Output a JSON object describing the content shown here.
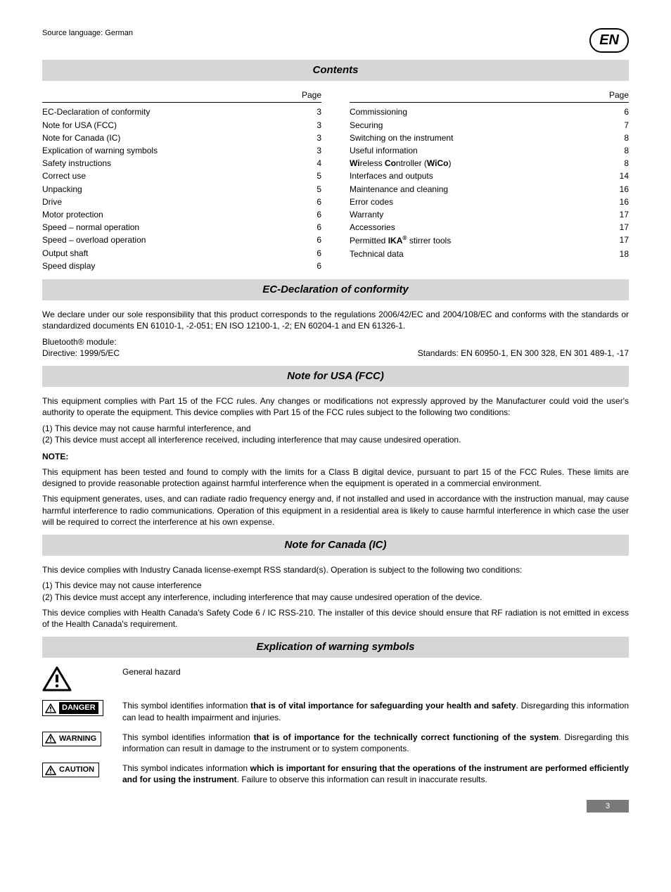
{
  "header": {
    "source_lang": "Source language: German",
    "lang_badge": "EN"
  },
  "contents": {
    "title": "Contents",
    "page_label": "Page",
    "left": [
      {
        "label": "EC-Declaration of conformity",
        "page": "3"
      },
      {
        "label": "Note for USA (FCC)",
        "page": "3"
      },
      {
        "label": "Note for Canada (IC)",
        "page": "3"
      },
      {
        "label": "Explication of warning symbols",
        "page": "3"
      },
      {
        "label": "Safety instructions",
        "page": "4"
      },
      {
        "label": "Correct use",
        "page": "5"
      },
      {
        "label": "Unpacking",
        "page": "5"
      },
      {
        "label": "Drive",
        "page": "6"
      },
      {
        "label": "Motor protection",
        "page": "6"
      },
      {
        "label": "Speed – normal operation",
        "page": "6"
      },
      {
        "label": "Speed – overload operation",
        "page": "6"
      },
      {
        "label": "Output shaft",
        "page": "6"
      },
      {
        "label": "Speed display",
        "page": "6"
      }
    ],
    "right": [
      {
        "label": "Commissioning",
        "page": "6"
      },
      {
        "label": "Securing",
        "page": "7"
      },
      {
        "label": "Switching on the instrument",
        "page": "8"
      },
      {
        "label": "Useful information",
        "page": "8"
      },
      {
        "label_html": "<b>Wi</b>reless <b>Co</b>ntroller (<b>WiCo</b>)",
        "page": "8"
      },
      {
        "label": "Interfaces and outputs",
        "page": "14"
      },
      {
        "label": "Maintenance and cleaning",
        "page": "16"
      },
      {
        "label": "Error codes",
        "page": "16"
      },
      {
        "label": "Warranty",
        "page": "17"
      },
      {
        "label": "Accessories",
        "page": "17"
      },
      {
        "label_html": "Permitted <b>IKA<sup>®</sup></b> stirrer tools",
        "page": "17"
      },
      {
        "label": "Technical data",
        "page": "18"
      }
    ]
  },
  "ec": {
    "title": "EC-Declaration of conformity",
    "p1": "We declare under our sole responsibility that this product corresponds to the regulations 2006/42/EC and 2004/108/EC and conforms with the standards or standardized documents EN 61010-1, -2-051; EN ISO 12100-1, -2; EN 60204-1 and EN 61326-1.",
    "bt": "Bluetooth® module:",
    "dir": "Directive: 1999/5/EC",
    "std": "Standards: EN 60950-1, EN 300 328, EN 301 489-1, -17"
  },
  "fcc": {
    "title": "Note for USA (FCC)",
    "p1": "This equipment complies with Part 15 of the FCC rules. Any changes or modifications not expressly approved by the Manufacturer could void the user's authority to operate the equipment. This device complies with Part 15 of the FCC rules subject to the following two conditions:",
    "l1": "(1) This device may not cause harmful interference, and",
    "l2": "(2) This device must accept all interference received, including interference that may cause undesired operation.",
    "note_label": "NOTE:",
    "p2": "This equipment has been tested and found to comply with the limits for a Class B digital device, pursuant to part 15 of the FCC Rules. These limits are designed to provide reasonable protection against harmful interference when the equipment is operated in a commercial environment.",
    "p3": "This equipment generates, uses, and can radiate radio frequency energy and, if not installed and used in accordance with the instruction manual, may cause harmful interference to radio communications. Operation of this equipment in a residential area is likely to cause harmful interference in which case the user will be required to correct the interference at his own expense."
  },
  "ic": {
    "title": "Note for Canada (IC)",
    "p1": "This device complies with Industry Canada license-exempt RSS standard(s). Operation is subject to the following two conditions:",
    "l1": "(1) This device may not cause interference",
    "l2": "(2) This device must accept any interference, including interference that may cause undesired operation of the device.",
    "p2": "This device complies with Health Canada's Safety Code 6 / IC RSS-210. The installer of this device should ensure that RF radiation is not emitted in excess of the Health Canada's requirement."
  },
  "warn": {
    "title": "Explication of warning symbols",
    "general": "General hazard",
    "danger_label": "DANGER",
    "danger_text_pre": "This symbol identifies information ",
    "danger_text_b": "that is of vital importance for safeguarding your health and safety",
    "danger_text_post": ". Disregarding this information can lead to health impairment and injuries.",
    "warning_label": "WARNING",
    "warning_text_pre": "This symbol identifies information ",
    "warning_text_b": "that is of importance for the technically correct functioning of the system",
    "warning_text_post": ". Disregarding this information can result in damage to the instrument or to system components.",
    "caution_label": "CAUTION",
    "caution_text_pre": "This symbol indicates information ",
    "caution_text_b": "which is important for ensuring that the operations of the instrument are performed efficiently and for using the instrument",
    "caution_text_post": ". Failure to observe this information can result in inaccurate results."
  },
  "page_number": "3",
  "style": {
    "section_bg": "#d6d6d6",
    "footer_bg": "#7a7a7a"
  }
}
